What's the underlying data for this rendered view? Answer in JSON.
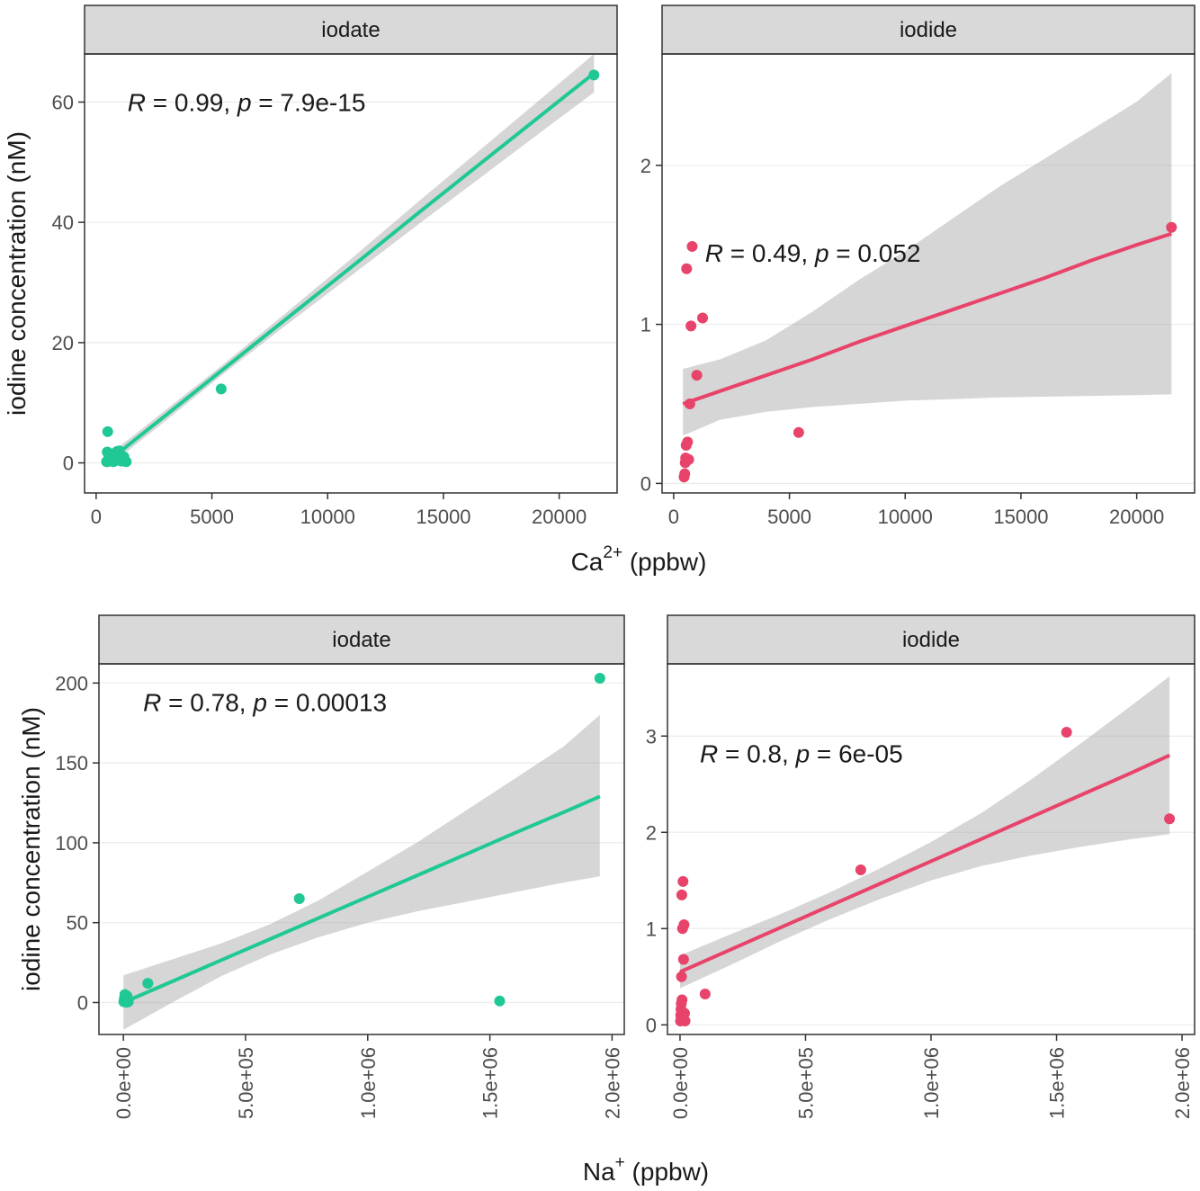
{
  "colors": {
    "iodate": "#1fc895",
    "iodide": "#e8436a",
    "band": "#999999",
    "strip_fill": "#d9d9d9",
    "grid": "#ebebeb",
    "border": "#333333"
  },
  "chart_data": [
    {
      "type": "scatter",
      "panel": "iodate",
      "strip": "iodate",
      "y_axis_title": "iodine concentration (nM)",
      "x_axis_title": "",
      "xlim": [
        -500,
        22500
      ],
      "ylim": [
        -5,
        68
      ],
      "x_ticks": [
        0,
        5000,
        10000,
        15000,
        20000
      ],
      "x_tick_labels": [
        "0",
        "5000",
        "10000",
        "15000",
        "20000"
      ],
      "y_ticks": [
        0,
        20,
        40,
        60
      ],
      "y_tick_labels": [
        "0",
        "20",
        "40",
        "60"
      ],
      "x_rotated": false,
      "annotation": {
        "R_label": "R",
        "R_text": " = 0.99, ",
        "p_label": "p",
        "p_text": " = 7.9e-15",
        "x": 500,
        "y": 60
      },
      "fit": {
        "x": [
          500,
          1500,
          3000,
          5400,
          8000,
          11000,
          14000,
          17000,
          20000,
          21500
        ],
        "y": [
          0.2,
          3.3,
          7.9,
          15.3,
          23.3,
          32.5,
          41.8,
          51,
          60.2,
          64.8
        ],
        "lower": [
          -0.9,
          2.4,
          7.0,
          14.5,
          22.3,
          31.1,
          39.9,
          48.6,
          57.3,
          61.6
        ],
        "upper": [
          1.3,
          4.2,
          8.8,
          16.1,
          24.3,
          33.9,
          43.7,
          53.4,
          63.1,
          68.0
        ]
      },
      "points": {
        "x": [
          450,
          480,
          500,
          520,
          550,
          600,
          650,
          700,
          750,
          800,
          850,
          900,
          950,
          1000,
          1100,
          1200,
          1300,
          5400,
          21500
        ],
        "y": [
          0.2,
          1.8,
          5.2,
          0.5,
          1.0,
          0.3,
          1.5,
          0.8,
          0.2,
          1.2,
          0.4,
          1.9,
          0.6,
          2.0,
          0.3,
          1.0,
          0.2,
          12.3,
          64.5
        ]
      }
    },
    {
      "type": "scatter",
      "panel": "iodide",
      "strip": "iodide",
      "y_axis_title": "",
      "x_axis_title": "",
      "xlim": [
        -500,
        22500
      ],
      "ylim": [
        -0.06,
        2.7
      ],
      "x_ticks": [
        0,
        5000,
        10000,
        15000,
        20000
      ],
      "x_tick_labels": [
        "0",
        "5000",
        "10000",
        "15000",
        "20000"
      ],
      "y_ticks": [
        0,
        1,
        2
      ],
      "y_tick_labels": [
        "0",
        "1",
        "2"
      ],
      "x_rotated": false,
      "annotation": {
        "R_label": "R",
        "R_text": " = 0.49, ",
        "p_label": "p",
        "p_text": " = 0.052",
        "x": 500,
        "y": 1.45
      },
      "fit": {
        "x": [
          400,
          2000,
          4000,
          6000,
          8000,
          10000,
          12000,
          14000,
          16000,
          18000,
          20000,
          21500
        ],
        "y": [
          0.5,
          0.58,
          0.68,
          0.78,
          0.89,
          0.99,
          1.09,
          1.19,
          1.29,
          1.4,
          1.5,
          1.57
        ],
        "lower": [
          0.3,
          0.4,
          0.45,
          0.48,
          0.5,
          0.52,
          0.53,
          0.54,
          0.545,
          0.55,
          0.555,
          0.56
        ],
        "upper": [
          0.72,
          0.78,
          0.9,
          1.08,
          1.28,
          1.46,
          1.66,
          1.86,
          2.04,
          2.22,
          2.4,
          2.58
        ]
      },
      "points": {
        "x": [
          450,
          480,
          500,
          520,
          540,
          560,
          600,
          650,
          700,
          750,
          800,
          1000,
          1250,
          5400,
          21500
        ],
        "y": [
          0.04,
          0.06,
          0.13,
          0.16,
          0.24,
          1.35,
          0.26,
          0.15,
          0.5,
          0.99,
          1.49,
          0.68,
          1.04,
          0.32,
          1.61
        ]
      }
    },
    {
      "type": "scatter",
      "panel": "iodate",
      "strip": "iodate",
      "y_axis_title": "iodine concentration (nM)",
      "x_axis_title": "",
      "xlim": [
        -100000,
        2050000
      ],
      "ylim": [
        -20,
        212
      ],
      "x_ticks": [
        0,
        500000,
        1000000,
        1500000,
        2000000
      ],
      "x_tick_labels": [
        "0.0e+00",
        "5.0e+05",
        "1.0e+06",
        "1.5e+06",
        "2.0e+06"
      ],
      "y_ticks": [
        0,
        50,
        100,
        150,
        200
      ],
      "y_tick_labels": [
        "0",
        "50",
        "100",
        "150",
        "200"
      ],
      "x_rotated": true,
      "annotation": {
        "R_label": "R",
        "R_text": " = 0.78, ",
        "p_label": "p",
        "p_text": " = 0.00013",
        "x": 0,
        "y": 188
      },
      "fit": {
        "x": [
          0,
          200000,
          400000,
          600000,
          800000,
          1000000,
          1200000,
          1400000,
          1600000,
          1800000,
          1950000
        ],
        "y": [
          0,
          13.2,
          26.5,
          39.7,
          53,
          66.2,
          79.4,
          92.7,
          106,
          119,
          129
        ],
        "lower": [
          -17,
          0,
          16.5,
          30,
          41,
          50,
          57,
          63,
          69,
          75,
          79
        ],
        "upper": [
          17,
          27,
          37,
          49,
          64,
          82,
          100,
          120,
          140,
          160,
          180
        ]
      },
      "points": {
        "x": [
          2000,
          4000,
          6000,
          8000,
          10000,
          12000,
          15000,
          18000,
          20000,
          100000,
          720000,
          1540000,
          1950000
        ],
        "y": [
          0.5,
          2.5,
          5,
          1,
          3,
          0.2,
          4,
          1,
          0.5,
          12,
          65,
          1,
          203
        ]
      }
    },
    {
      "type": "scatter",
      "panel": "iodide",
      "strip": "iodide",
      "y_axis_title": "",
      "x_axis_title": "",
      "xlim": [
        -50000,
        2050000
      ],
      "ylim": [
        -0.1,
        3.75
      ],
      "x_ticks": [
        0,
        500000,
        1000000,
        1500000,
        2000000
      ],
      "x_tick_labels": [
        "0.0e+00",
        "5.0e+05",
        "1.0e+06",
        "1.5e+06",
        "2.0e+06"
      ],
      "y_ticks": [
        0,
        1,
        2,
        3
      ],
      "y_tick_labels": [
        "0",
        "1",
        "2",
        "3"
      ],
      "x_rotated": true,
      "annotation": {
        "R_label": "R",
        "R_text": " = 0.8, ",
        "p_label": "p",
        "p_text": " = 6e-05",
        "x": 0,
        "y": 2.82
      },
      "fit": {
        "x": [
          0,
          200000,
          400000,
          600000,
          800000,
          1000000,
          1200000,
          1400000,
          1600000,
          1800000,
          1950000
        ],
        "y": [
          0.55,
          0.78,
          1.01,
          1.24,
          1.47,
          1.7,
          1.93,
          2.16,
          2.39,
          2.62,
          2.8
        ],
        "lower": [
          0.38,
          0.62,
          0.87,
          1.1,
          1.31,
          1.5,
          1.65,
          1.76,
          1.85,
          1.93,
          1.98
        ],
        "upper": [
          0.72,
          0.94,
          1.15,
          1.38,
          1.63,
          1.9,
          2.2,
          2.55,
          2.93,
          3.32,
          3.62
        ]
      },
      "points": {
        "x": [
          2000,
          3000,
          4000,
          5000,
          6000,
          7000,
          8000,
          10000,
          12000,
          14000,
          16000,
          18000,
          20000,
          100000,
          720000,
          1540000,
          1950000
        ],
        "y": [
          0.04,
          0.1,
          0.16,
          0.22,
          0.5,
          1.35,
          0.26,
          1.0,
          1.49,
          0.68,
          1.04,
          0.12,
          0.04,
          0.32,
          1.61,
          3.04,
          2.14
        ]
      }
    }
  ],
  "x_titles": [
    {
      "base": "Ca",
      "sup": "2+",
      "rest": "  (ppbw)"
    },
    {
      "base": "Na",
      "sup": "+",
      "rest": "  (ppbw)"
    }
  ]
}
